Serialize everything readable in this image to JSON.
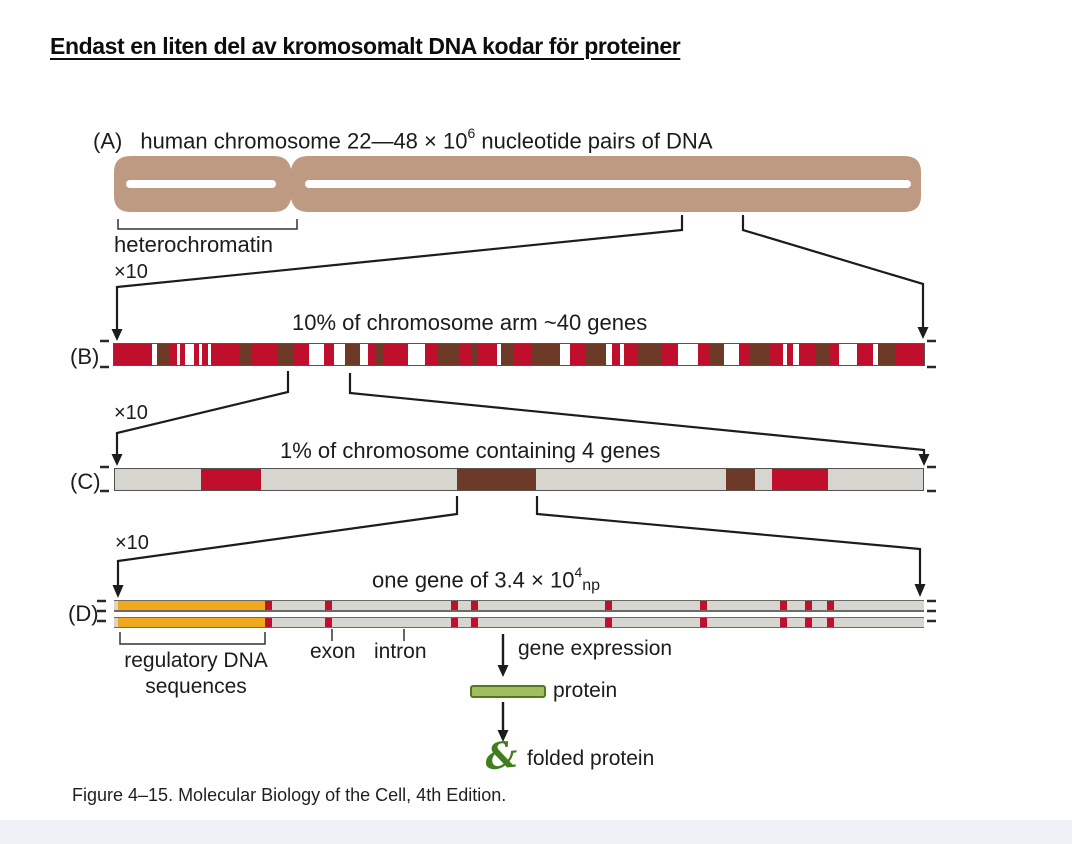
{
  "page": {
    "title": "Endast en liten del av kromosomalt DNA kodar för proteiner",
    "caption": "Figure 4–15. Molecular Biology of the Cell, 4th Edition."
  },
  "colors": {
    "chromosome_tan": "#bf9a82",
    "red": "#c00e2d",
    "dark_brown": "#6c3a26",
    "bar_gray": "#d6d5cf",
    "orange": "#f0a81f",
    "protein_green_fill": "#a2bd60",
    "protein_green_border": "#4f7a1e",
    "folded_protein_green": "#3f7d1d",
    "footer_band": "#edf1f6",
    "line_black": "#1c1c1c"
  },
  "zoom_factor_label": "×10",
  "panelA": {
    "label": "(A)",
    "heading_pre": "human chromosome 22—48 × 10",
    "heading_sup": "6",
    "heading_post": " nucleotide pairs of DNA",
    "bracket_label": "heterochromatin"
  },
  "panelB": {
    "label": "(B)",
    "heading": "10% of chromosome arm ~40 genes",
    "segments": [
      [
        "r",
        38
      ],
      [
        "w",
        5
      ],
      [
        "b",
        13
      ],
      [
        "r",
        7
      ],
      [
        "w",
        3
      ],
      [
        "r",
        5
      ],
      [
        "w",
        9
      ],
      [
        "r",
        5
      ],
      [
        "w",
        3
      ],
      [
        "r",
        6
      ],
      [
        "w",
        3
      ],
      [
        "r",
        29
      ],
      [
        "b",
        12
      ],
      [
        "r",
        26
      ],
      [
        "b",
        16
      ],
      [
        "r",
        15
      ],
      [
        "w",
        15
      ],
      [
        "r",
        11
      ],
      [
        "w",
        11
      ],
      [
        "b",
        15
      ],
      [
        "w",
        8
      ],
      [
        "r",
        7
      ],
      [
        "b",
        9
      ],
      [
        "r",
        24
      ],
      [
        "w",
        17
      ],
      [
        "r",
        13
      ],
      [
        "b",
        22
      ],
      [
        "r",
        11
      ],
      [
        "b",
        6
      ],
      [
        "r",
        20
      ],
      [
        "w",
        4
      ],
      [
        "b",
        13
      ],
      [
        "r",
        18
      ],
      [
        "b",
        28
      ],
      [
        "w",
        10
      ],
      [
        "r",
        16
      ],
      [
        "b",
        20
      ],
      [
        "w",
        6
      ],
      [
        "r",
        8
      ],
      [
        "w",
        4
      ],
      [
        "r",
        14
      ],
      [
        "b",
        24
      ],
      [
        "r",
        16
      ],
      [
        "w",
        20
      ],
      [
        "r",
        12
      ],
      [
        "b",
        14
      ],
      [
        "w",
        16
      ],
      [
        "r",
        10
      ],
      [
        "b",
        20
      ],
      [
        "r",
        14
      ],
      [
        "w",
        4
      ],
      [
        "r",
        6
      ],
      [
        "w",
        6
      ],
      [
        "r",
        16
      ],
      [
        "b",
        14
      ],
      [
        "r",
        10
      ],
      [
        "w",
        18
      ],
      [
        "r",
        16
      ],
      [
        "w",
        5
      ],
      [
        "b",
        18
      ],
      [
        "r",
        28
      ]
    ]
  },
  "panelC": {
    "label": "(C)",
    "heading": "1% of chromosome containing 4 genes",
    "segments": [
      [
        "g",
        86
      ],
      [
        "r",
        60
      ],
      [
        "g",
        197
      ],
      [
        "b",
        79
      ],
      [
        "g",
        190
      ],
      [
        "b",
        30
      ],
      [
        "g",
        17
      ],
      [
        "r",
        56
      ],
      [
        "g",
        95
      ]
    ]
  },
  "panelD": {
    "label": "(D)",
    "heading_pre": "one gene of 3.4 × 10",
    "heading_sup": "4",
    "heading_unit": "np",
    "bracket_label_line1": "regulatory DNA",
    "bracket_label_line2": "sequences",
    "exon_label": "exon",
    "intron_label": "intron",
    "gene_expression_label": "gene expression",
    "protein_label": "protein",
    "folded_protein_label": "folded protein",
    "orange_block": {
      "x": 4,
      "width": 147
    },
    "red_mark_width": 7,
    "red_marks": [
      151,
      211,
      337,
      357,
      491,
      586,
      666,
      691,
      713
    ]
  },
  "icons": {
    "folded_protein_glyph": "&"
  }
}
